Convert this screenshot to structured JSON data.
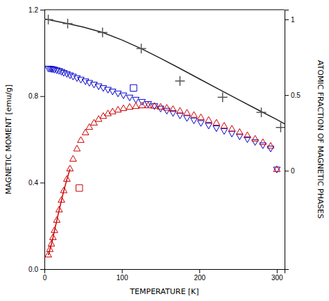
{
  "chart_data": {
    "type": "line",
    "xlabel": "TEMPERATURE [K]",
    "ylabel": "MAGNETIC MOMENT [emu/g]",
    "y2label": "ATOMIC FRACTION OF MAGNETIC PHASES",
    "xlim": [
      0,
      310
    ],
    "xticks": [
      0,
      100,
      200,
      300
    ],
    "ylim": [
      0,
      1.2
    ],
    "yticks": [
      {
        "value": 0,
        "label": "0.0"
      },
      0.4,
      0.8,
      1.2
    ],
    "y2lim": [
      -0.65,
      1.0642857142857143
    ],
    "y2ticks": [
      0,
      0.5,
      1
    ],
    "grid": false,
    "series": [
      {
        "type": "line",
        "color": "#222222",
        "line_style": "solid",
        "x": [
          0,
          5,
          10,
          20,
          30,
          50,
          75,
          100,
          125,
          150,
          175,
          200,
          225,
          250,
          275,
          300,
          310
        ],
        "values": [
          1.157,
          1.154,
          1.15,
          1.143,
          1.136,
          1.12,
          1.095,
          1.06,
          1.02,
          0.975,
          0.928,
          0.88,
          0.832,
          0.785,
          0.738,
          0.692,
          0.672
        ]
      },
      {
        "type": "scatter",
        "color": "#555555",
        "marker": "plus",
        "x": [
          5,
          30,
          75,
          125,
          175,
          230,
          280,
          305
        ],
        "values": [
          1.154,
          1.136,
          1.095,
          1.02,
          0.87,
          0.795,
          0.725,
          0.655
        ]
      },
      {
        "type": "scatter",
        "color": "#0000cc",
        "marker": "triangle-down",
        "x": [
          5,
          7,
          9,
          11,
          13,
          16,
          19,
          22,
          25,
          29,
          33,
          37,
          42,
          47,
          53,
          58,
          64,
          70,
          76,
          82,
          88,
          95,
          102,
          110,
          118,
          126,
          134,
          142,
          150,
          158,
          166,
          175,
          184,
          193,
          202,
          212,
          222,
          232,
          242,
          252,
          262,
          272,
          282,
          292,
          300
        ],
        "values": [
          0.93,
          0.929,
          0.928,
          0.927,
          0.925,
          0.922,
          0.919,
          0.915,
          0.91,
          0.905,
          0.899,
          0.893,
          0.886,
          0.879,
          0.871,
          0.864,
          0.856,
          0.848,
          0.84,
          0.832,
          0.824,
          0.815,
          0.806,
          0.796,
          0.786,
          0.776,
          0.766,
          0.756,
          0.745,
          0.735,
          0.724,
          0.713,
          0.701,
          0.69,
          0.678,
          0.666,
          0.654,
          0.641,
          0.629,
          0.616,
          0.603,
          0.59,
          0.575,
          0.56,
          0.463
        ]
      },
      {
        "type": "line",
        "color": "#cc0000",
        "line_style": "solid",
        "x": [
          5,
          7,
          9,
          11,
          13,
          16,
          19,
          22,
          25,
          29,
          33
        ],
        "values": [
          0.065,
          0.09,
          0.115,
          0.145,
          0.178,
          0.225,
          0.273,
          0.318,
          0.362,
          0.415,
          0.463
        ]
      },
      {
        "type": "scatter",
        "color": "#cc0000",
        "marker": "triangle-up",
        "x": [
          5,
          7,
          9,
          11,
          13,
          16,
          19,
          22,
          25,
          29,
          33,
          37,
          42,
          47,
          53,
          58,
          64,
          70,
          76,
          82,
          88,
          95,
          102,
          110,
          118,
          126,
          134,
          142,
          150,
          158,
          166,
          175,
          184,
          193,
          202,
          212,
          222,
          232,
          242,
          252,
          262,
          272,
          282,
          292,
          300
        ],
        "values": [
          0.065,
          0.09,
          0.115,
          0.145,
          0.178,
          0.225,
          0.273,
          0.318,
          0.362,
          0.415,
          0.463,
          0.508,
          0.555,
          0.595,
          0.63,
          0.655,
          0.675,
          0.692,
          0.706,
          0.718,
          0.727,
          0.735,
          0.742,
          0.748,
          0.752,
          0.755,
          0.755,
          0.753,
          0.749,
          0.744,
          0.738,
          0.73,
          0.721,
          0.711,
          0.7,
          0.688,
          0.675,
          0.661,
          0.647,
          0.632,
          0.617,
          0.601,
          0.585,
          0.568,
          0.46
        ]
      },
      {
        "type": "scatter",
        "color": "#0000cc",
        "marker": "square",
        "x": [
          115
        ],
        "values": [
          0.838
        ]
      },
      {
        "type": "scatter",
        "color": "#cc0000",
        "marker": "square",
        "x": [
          45
        ],
        "values": [
          0.375
        ]
      }
    ]
  }
}
